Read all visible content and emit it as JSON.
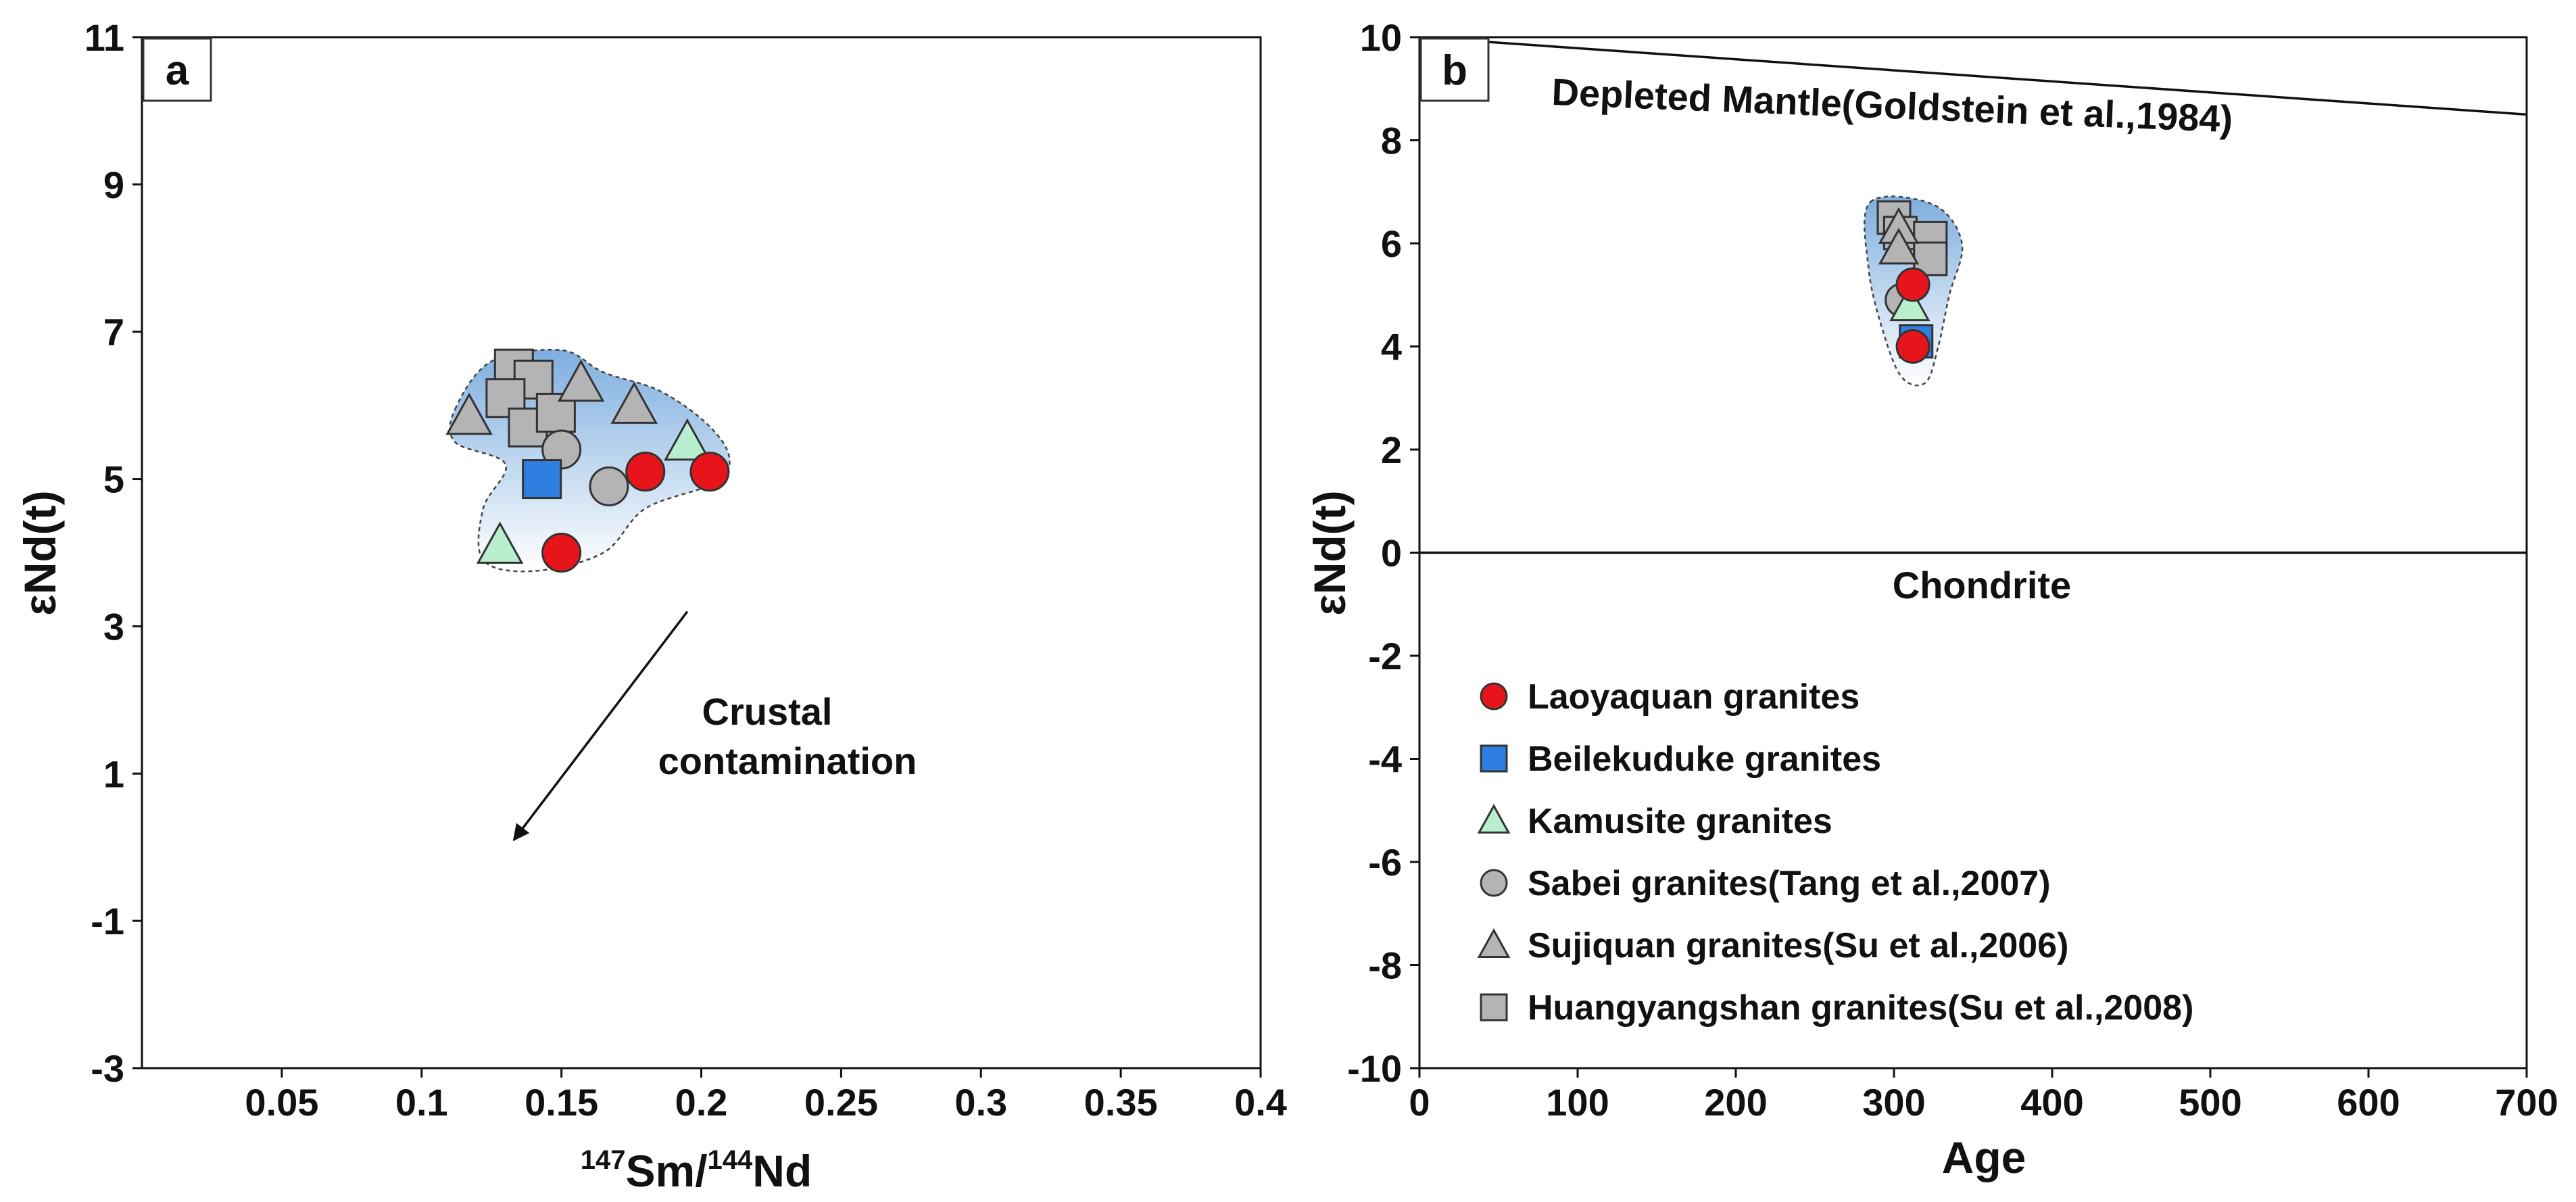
{
  "chart_data": [
    {
      "type": "scatter",
      "panel_label": "a",
      "xlabel_mass_top": "147",
      "xlabel_elem_top": "Sm/",
      "xlabel_mass_bottom": "144",
      "xlabel_elem_bottom": "Nd",
      "ylabel": "εNd(t)",
      "xlim": [
        0,
        0.4
      ],
      "ylim": [
        -3,
        11
      ],
      "x_ticks": [
        0.05,
        0.1,
        0.15,
        0.2,
        0.25,
        0.3,
        0.35,
        0.4
      ],
      "x_tick_labels": [
        "0.05",
        "0.1",
        "0.15",
        "0.2",
        "0.25",
        "0.3",
        "0.35",
        "0.4"
      ],
      "y_ticks": [
        -3,
        -1,
        1,
        3,
        5,
        7,
        9,
        11
      ],
      "y_tick_labels": [
        "-3",
        "-1",
        "1",
        "3",
        "5",
        "7",
        "9",
        "11"
      ],
      "annotation_line1": "Crustal",
      "annotation_line2": "contamination",
      "arrow": {
        "from": [
          0.195,
          3.2
        ],
        "to": [
          0.133,
          0.1
        ]
      },
      "series": [
        {
          "name": "Laoyaquan granites",
          "marker": "circle",
          "color": "#e8141b",
          "points": [
            [
              0.15,
              4.0
            ],
            [
              0.18,
              5.1
            ],
            [
              0.203,
              5.1
            ]
          ]
        },
        {
          "name": "Beilekuduke granites",
          "marker": "square",
          "color": "#2f7fe0",
          "points": [
            [
              0.143,
              5.0
            ]
          ]
        },
        {
          "name": "Kamusite granites",
          "marker": "triangle",
          "color": "#b8f0cf",
          "points": [
            [
              0.128,
              4.1
            ],
            [
              0.195,
              5.5
            ]
          ]
        },
        {
          "name": "Sabei granites(Tang et al.,2007)",
          "marker": "circle",
          "color": "#b4b4b4",
          "points": [
            [
              0.15,
              5.4
            ],
            [
              0.167,
              4.9
            ]
          ]
        },
        {
          "name": "Sujiquan granites(Su et al.,2006)",
          "marker": "triangle",
          "color": "#b4b4b4",
          "points": [
            [
              0.117,
              5.85
            ],
            [
              0.157,
              6.3
            ],
            [
              0.176,
              6.0
            ]
          ]
        },
        {
          "name": "Huangyangshan granites(Su et al.,2008)",
          "marker": "square",
          "color": "#b4b4b4",
          "points": [
            [
              0.133,
              6.5
            ],
            [
              0.14,
              6.35
            ],
            [
              0.13,
              6.1
            ],
            [
              0.138,
              5.7
            ],
            [
              0.148,
              5.9
            ]
          ]
        }
      ]
    },
    {
      "type": "scatter",
      "panel_label": "b",
      "xlabel": "Age",
      "ylabel": "εNd(t)",
      "xlim": [
        0,
        700
      ],
      "ylim": [
        -10,
        10
      ],
      "x_ticks": [
        0,
        100,
        200,
        300,
        400,
        500,
        600,
        700
      ],
      "x_tick_labels": [
        "0",
        "100",
        "200",
        "300",
        "400",
        "500",
        "600",
        "700"
      ],
      "y_ticks": [
        -10,
        -8,
        -6,
        -4,
        -2,
        0,
        2,
        4,
        6,
        8,
        10
      ],
      "y_tick_labels": [
        "-10",
        "-8",
        "-6",
        "-4",
        "-2",
        "0",
        "2",
        "4",
        "6",
        "8",
        "10"
      ],
      "reference_lines": [
        {
          "label": "Depleted Mantle(Goldstein et al.,1984)",
          "from": [
            0,
            10
          ],
          "to": [
            700,
            8.5
          ]
        },
        {
          "label": "Chondrite",
          "from": [
            0,
            0
          ],
          "to": [
            700,
            0
          ]
        }
      ],
      "series": [
        {
          "name": "Laoyaquan granites",
          "marker": "circle",
          "color": "#e8141b",
          "points": [
            [
              312,
              5.2
            ],
            [
              312,
              4.0
            ]
          ]
        },
        {
          "name": "Beilekuduke granites",
          "marker": "square",
          "color": "#2f7fe0",
          "points": [
            [
              314,
              4.1
            ]
          ]
        },
        {
          "name": "Kamusite granites",
          "marker": "triangle",
          "color": "#b8f0cf",
          "points": [
            [
              310,
              4.8
            ]
          ]
        },
        {
          "name": "Sabei granites(Tang et al.,2007)",
          "marker": "circle",
          "color": "#b4b4b4",
          "points": [
            [
              305,
              4.9
            ]
          ]
        },
        {
          "name": "Sujiquan granites(Su et al.,2006)",
          "marker": "triangle",
          "color": "#b4b4b4",
          "points": [
            [
              303,
              6.3
            ],
            [
              303,
              5.9
            ]
          ]
        },
        {
          "name": "Huangyangshan granites(Su et al.,2008)",
          "marker": "square",
          "color": "#b4b4b4",
          "points": [
            [
              300,
              6.5
            ],
            [
              304,
              6.2
            ],
            [
              323,
              6.1
            ],
            [
              323,
              5.7
            ]
          ]
        }
      ]
    }
  ],
  "legend": [
    {
      "label": "Laoyaquan granites",
      "marker": "circle",
      "color": "#e8141b"
    },
    {
      "label": "Beilekuduke granites",
      "marker": "square",
      "color": "#2f7fe0"
    },
    {
      "label": "Kamusite granites",
      "marker": "triangle",
      "color": "#b8f0cf"
    },
    {
      "label": "Sabei granites(Tang et al.,2007)",
      "marker": "circle",
      "color": "#b4b4b4"
    },
    {
      "label": "Sujiquan granites(Su et al.,2006)",
      "marker": "triangle",
      "color": "#b4b4b4"
    },
    {
      "label": "Huangyangshan granites(Su et al.,2008)",
      "marker": "square",
      "color": "#b4b4b4"
    }
  ],
  "colors": {
    "field_fill": "#8fb9e2",
    "field_edge": "#444444",
    "axis": "#111111"
  }
}
